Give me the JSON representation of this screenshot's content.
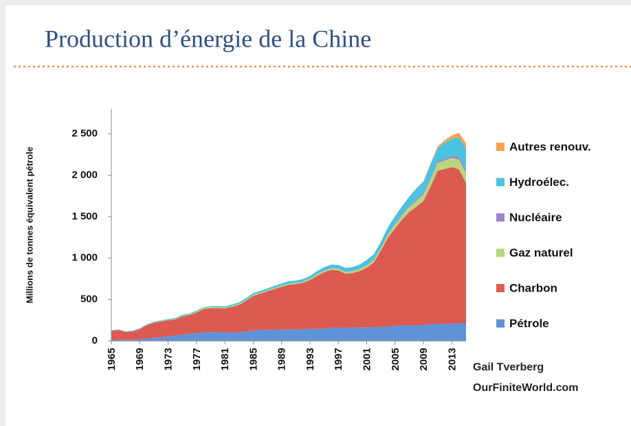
{
  "chart_data": {
    "type": "stacked_area",
    "title": "Production d’énergie de la Chine",
    "y_label": "Millions de tonnes équivalent pétrole",
    "annotations": [
      "Gail Tverberg",
      "OurFiniteWorld.com"
    ],
    "x": [
      1965,
      1966,
      1967,
      1968,
      1969,
      1970,
      1971,
      1972,
      1973,
      1974,
      1975,
      1976,
      1977,
      1978,
      1979,
      1980,
      1981,
      1982,
      1983,
      1984,
      1985,
      1986,
      1987,
      1988,
      1989,
      1990,
      1991,
      1992,
      1993,
      1994,
      1995,
      1996,
      1997,
      1998,
      1999,
      2000,
      2001,
      2002,
      2003,
      2004,
      2005,
      2006,
      2007,
      2008,
      2009,
      2010,
      2011,
      2012,
      2013,
      2014,
      2015
    ],
    "xlim": [
      1965,
      2015
    ],
    "xticks": [
      1965,
      1969,
      1973,
      1977,
      1981,
      1985,
      1989,
      1993,
      1997,
      2001,
      2005,
      2009,
      2013
    ],
    "ylim": [
      0,
      2800
    ],
    "yticks": [
      0,
      500,
      {
        "value": 1000,
        "label": "1 000"
      },
      {
        "value": 1500,
        "label": "1 500"
      },
      {
        "value": 2000,
        "label": "2 000"
      },
      {
        "value": 2500,
        "label": "2 500"
      }
    ],
    "legend": "right",
    "series": [
      {
        "name": "Pétrole",
        "color": "#5f93d8",
        "values": [
          11,
          14,
          14,
          15,
          22,
          30,
          39,
          45,
          54,
          65,
          77,
          87,
          94,
          104,
          106,
          106,
          101,
          102,
          106,
          115,
          125,
          131,
          134,
          137,
          138,
          138,
          141,
          142,
          145,
          146,
          149,
          158,
          161,
          161,
          160,
          163,
          164,
          167,
          170,
          175,
          181,
          185,
          186,
          190,
          189,
          203,
          203,
          207,
          208,
          211,
          215
        ]
      },
      {
        "name": "Charbon",
        "color": "#dc5a52",
        "values": [
          110,
          118,
          95,
          100,
          120,
          160,
          180,
          190,
          195,
          195,
          220,
          225,
          250,
          280,
          290,
          290,
          290,
          310,
          330,
          370,
          420,
          440,
          465,
          490,
          515,
          540,
          545,
          560,
          590,
          640,
          680,
          700,
          690,
          650,
          660,
          680,
          720,
          780,
          920,
          1070,
          1180,
          1280,
          1370,
          1430,
          1500,
          1660,
          1850,
          1870,
          1890,
          1860,
          1690
        ]
      },
      {
        "name": "Gaz naturel",
        "color": "#b7d77c",
        "values": [
          1,
          2,
          2,
          2,
          2,
          3,
          3,
          4,
          5,
          6,
          8,
          9,
          10,
          12,
          13,
          13,
          12,
          11,
          11,
          11,
          12,
          12,
          12,
          13,
          13,
          14,
          14,
          14,
          15,
          16,
          16,
          18,
          20,
          21,
          22,
          25,
          27,
          29,
          32,
          37,
          45,
          53,
          62,
          72,
          77,
          86,
          96,
          100,
          110,
          118,
          125
        ]
      },
      {
        "name": "Nucléaire",
        "color": "#9d86c6",
        "values": [
          0,
          0,
          0,
          0,
          0,
          0,
          0,
          0,
          0,
          0,
          0,
          0,
          0,
          0,
          0,
          0,
          0,
          0,
          0,
          0,
          0,
          0,
          0,
          0,
          0,
          0,
          0,
          0,
          0,
          3,
          3,
          3,
          3,
          3,
          3,
          4,
          4,
          6,
          10,
          11,
          12,
          12,
          14,
          16,
          16,
          17,
          20,
          22,
          25,
          30,
          38
        ]
      },
      {
        "name": "Hydroélec.",
        "color": "#4cc2e2",
        "values": [
          5,
          6,
          6,
          7,
          8,
          8,
          9,
          10,
          10,
          10,
          11,
          11,
          11,
          10,
          11,
          13,
          15,
          17,
          19,
          20,
          21,
          21,
          23,
          25,
          27,
          29,
          28,
          30,
          34,
          38,
          43,
          43,
          44,
          47,
          46,
          50,
          63,
          65,
          64,
          80,
          90,
          99,
          110,
          132,
          139,
          163,
          157,
          197,
          206,
          240,
          254
        ]
      },
      {
        "name": "Autres renouv.",
        "color": "#f5a34f",
        "values": [
          0,
          0,
          0,
          0,
          0,
          0,
          0,
          0,
          0,
          0,
          0,
          0,
          0,
          0,
          0,
          0,
          0,
          0,
          0,
          0,
          0,
          0,
          0,
          0,
          0,
          0,
          0,
          0,
          0,
          0,
          0,
          0,
          0,
          0,
          0,
          0,
          0,
          0,
          0,
          0,
          0,
          1,
          2,
          4,
          7,
          13,
          19,
          28,
          42,
          52,
          63
        ]
      }
    ]
  }
}
